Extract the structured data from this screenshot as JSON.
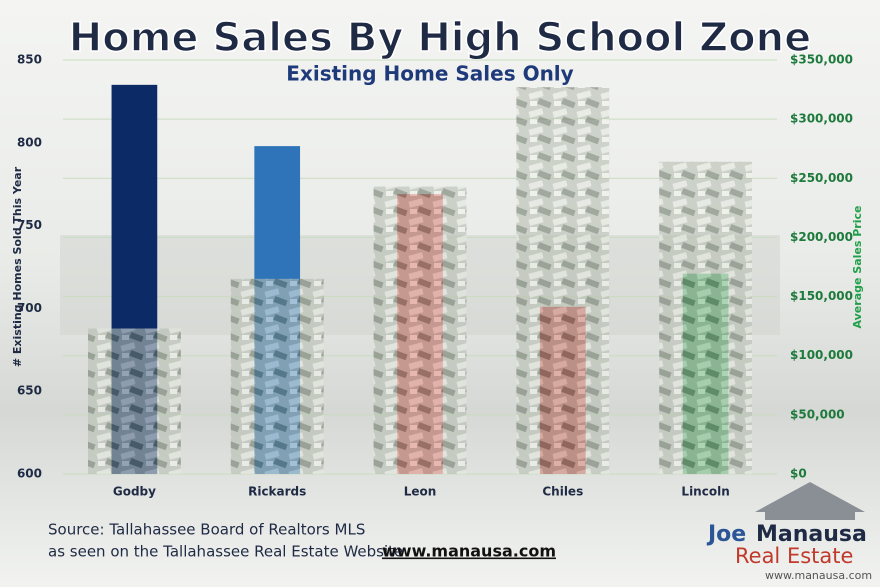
{
  "chart_data": {
    "type": "bar",
    "title": "Home Sales By High School Zone",
    "subtitle": "Existing Home Sales Only",
    "y_label": "# Existing Homes Sold This Year",
    "y2_label": "Average Sales Price",
    "categories": [
      "Godby",
      "Rickards",
      "Leon",
      "Chiles",
      "Lincoln"
    ],
    "series": [
      {
        "values": [
          835,
          798,
          769,
          701,
          721
        ],
        "colors": [
          "#0b2a66",
          "#2f74b8",
          "#d9625c",
          "#c24b45",
          "#48a463"
        ]
      },
      {
        "values": [
          123000,
          165000,
          243000,
          327000,
          264000
        ],
        "axis": "y2",
        "color": "#8c9a86"
      }
    ],
    "ylim": [
      600,
      850
    ],
    "yticks": [
      600,
      650,
      700,
      750,
      800,
      850
    ],
    "y2lim": [
      0,
      350000
    ],
    "y2ticks": [
      {
        "value": 0,
        "label": "$0"
      },
      {
        "value": 50000,
        "label": "$50,000"
      },
      {
        "value": 100000,
        "label": "$100,000"
      },
      {
        "value": 150000,
        "label": "$150,000"
      },
      {
        "value": 200000,
        "label": "$200,000"
      },
      {
        "value": 250000,
        "label": "$250,000"
      },
      {
        "value": 300000,
        "label": "$300,000"
      },
      {
        "value": 350000,
        "label": "$350,000"
      }
    ],
    "grid": true,
    "source": "Source: Tallahassee Board of Realtors MLS",
    "source_note": "as seen on the Tallahassee Real Estate Website",
    "website": "www.manausa.com",
    "logo": {
      "first": "Joe",
      "last": "Manausa",
      "tagline": "Real Estate",
      "url": "www.manausa.com"
    }
  }
}
